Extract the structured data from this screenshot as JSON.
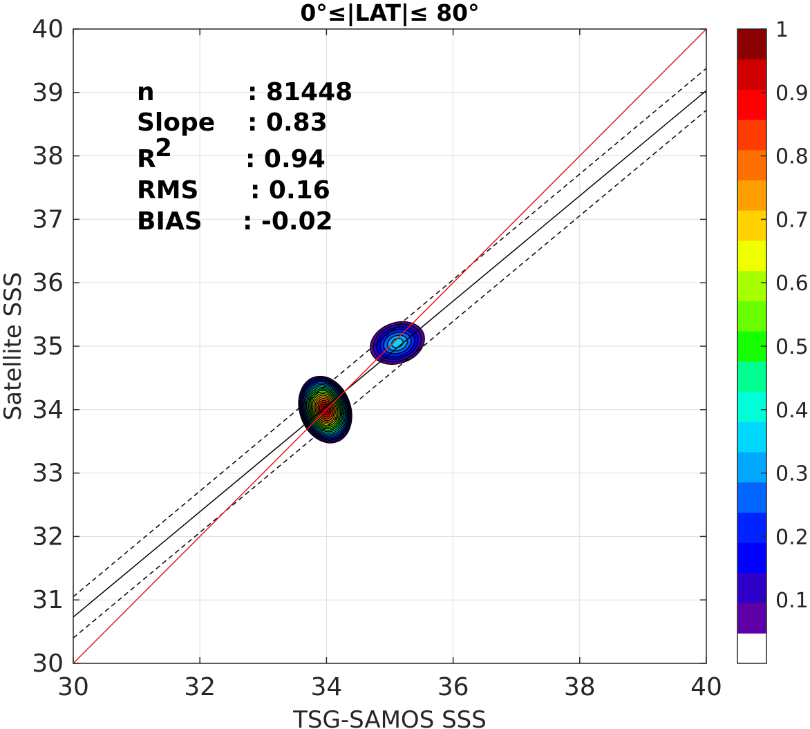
{
  "chart_data": {
    "type": "heatmap",
    "title": "0°≤|LAT|≤ 80°",
    "xlabel": "TSG-SAMOS SSS",
    "ylabel": "Satellite SSS",
    "xlim": [
      30,
      40
    ],
    "ylim": [
      30,
      40
    ],
    "xticks": [
      "30",
      "32",
      "34",
      "36",
      "38",
      "40"
    ],
    "yticks": [
      "30",
      "31",
      "32",
      "33",
      "34",
      "35",
      "36",
      "37",
      "38",
      "39",
      "40"
    ],
    "grid": true,
    "colorbar": {
      "range": [
        0,
        1
      ],
      "ticks": [
        "0.1",
        "0.2",
        "0.3",
        "0.4",
        "0.5",
        "0.6",
        "0.7",
        "0.8",
        "0.9",
        "1"
      ],
      "colors": [
        "#ffffff",
        "#5e00a8",
        "#2f00c8",
        "#0000ff",
        "#0024ff",
        "#0066ff",
        "#00a8ff",
        "#00d8ff",
        "#00ffd8",
        "#00ff90",
        "#16ff00",
        "#68ff00",
        "#a8ff00",
        "#f0ff00",
        "#ffd200",
        "#ffa000",
        "#ff7000",
        "#ff3c00",
        "#ff0000",
        "#d00000",
        "#8b0000"
      ]
    },
    "stats": [
      {
        "label": "n",
        "value": ": 81448"
      },
      {
        "label": "Slope",
        "value": ": 0.83"
      },
      {
        "label": "R",
        "sup": "2",
        "value": ": 0.94"
      },
      {
        "label": "RMS",
        "value": ": 0.16"
      },
      {
        "label": "BIAS",
        "value": ": -0.02"
      }
    ],
    "lines": {
      "identity": {
        "x": [
          30,
          40
        ],
        "y": [
          30,
          40
        ],
        "color": "#e41a1c"
      },
      "fit": {
        "x": [
          30,
          40
        ],
        "y": [
          30.73,
          39.03
        ],
        "color": "#000000"
      },
      "fit_upper": {
        "x": [
          30,
          40
        ],
        "y": [
          31.05,
          39.38
        ],
        "color": "#000000",
        "dash": true
      },
      "fit_lower": {
        "x": [
          30,
          40
        ],
        "y": [
          30.4,
          38.72
        ],
        "color": "#000000",
        "dash": true
      }
    },
    "density_clusters": [
      {
        "cx": 33.98,
        "cy": 34.0,
        "peak": 0.97,
        "rx": 0.4,
        "ry": 0.54
      },
      {
        "cx": 35.12,
        "cy": 35.05,
        "peak": 0.35,
        "rx": 0.44,
        "ry": 0.32
      }
    ]
  }
}
